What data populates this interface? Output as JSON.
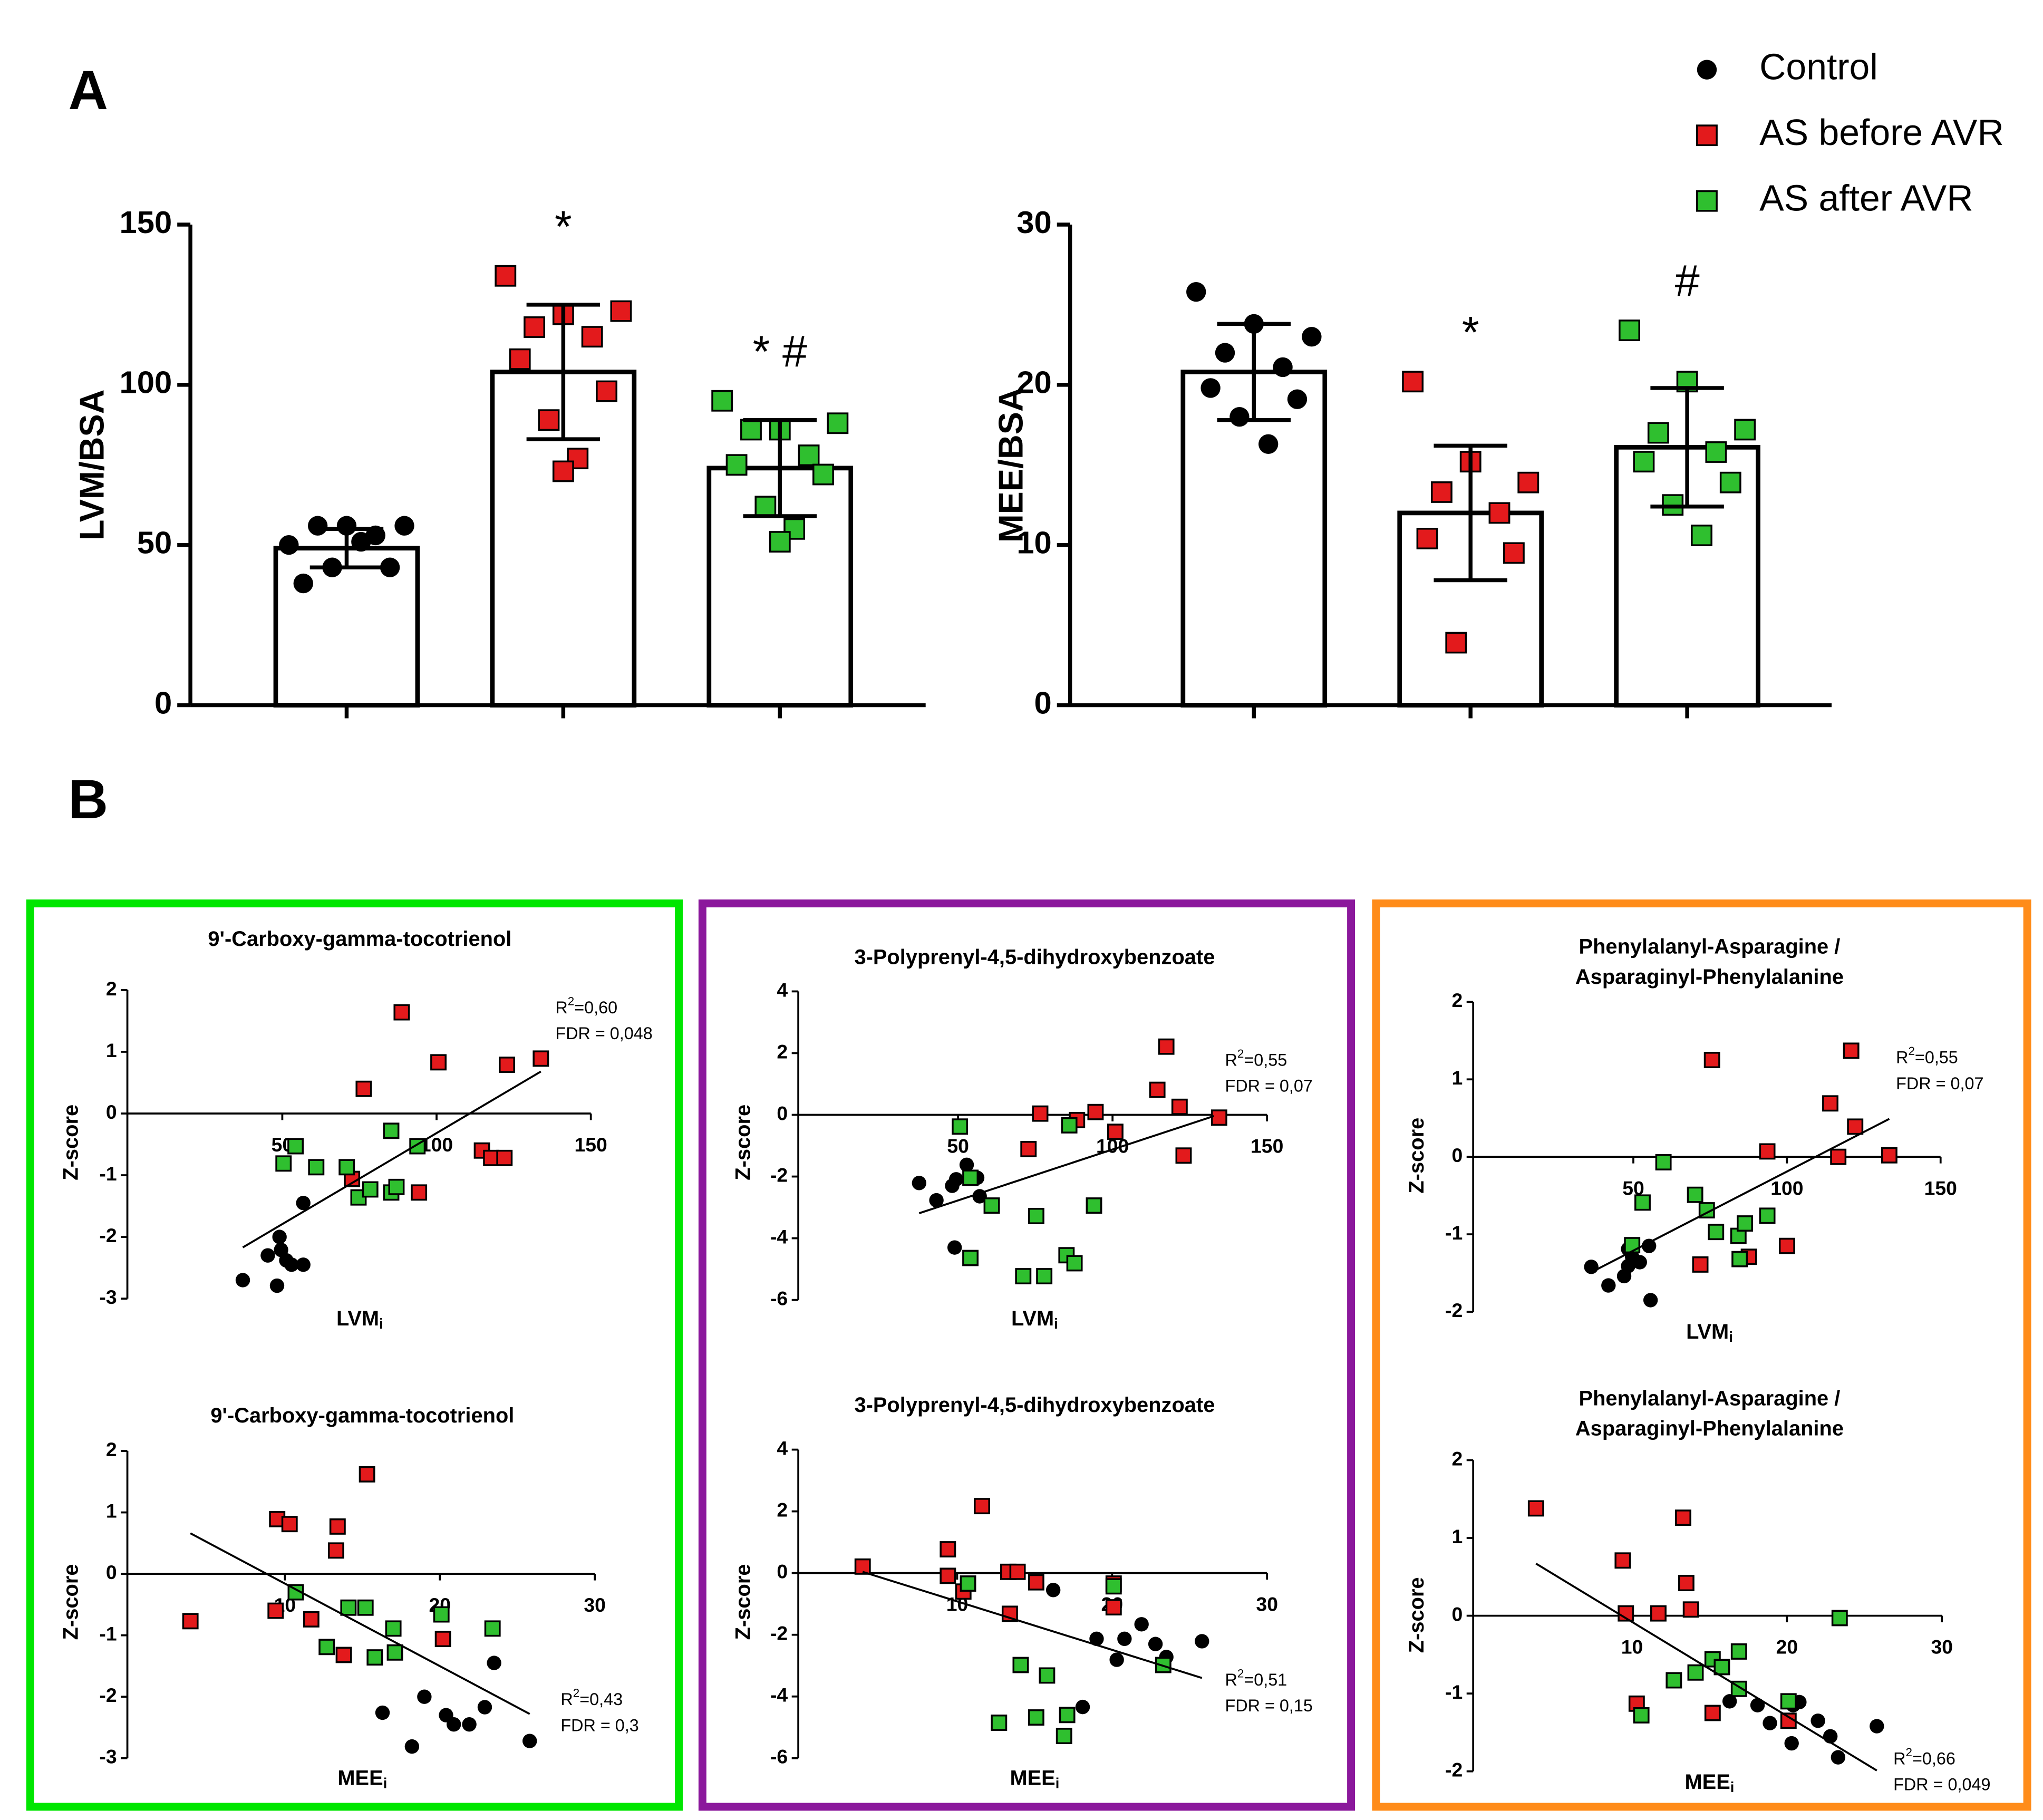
{
  "panel_labels": [
    "A",
    "B"
  ],
  "chart_data": [
    {
      "type": "bar",
      "ylabel": "LVM/BSA",
      "categories": [
        null,
        null,
        null
      ],
      "ylim": [
        0,
        150
      ],
      "yticks": [
        0,
        50,
        100,
        150
      ],
      "series": [
        {
          "name": "Control",
          "color": "#000000",
          "marker": "circle",
          "value": 49,
          "error": 6,
          "points": [
            50,
            56,
            56,
            56,
            53,
            38,
            43,
            43,
            51
          ]
        },
        {
          "name": "AS before AVR",
          "color": "#e31a1c",
          "marker": "square",
          "value": 104,
          "error": 21,
          "points": [
            134,
            122,
            123,
            118,
            115,
            108,
            98,
            89,
            77,
            73
          ]
        },
        {
          "name": "AS after AVR",
          "color": "#2fbf2f",
          "marker": "square",
          "value": 74,
          "error": 15,
          "points": [
            95,
            86,
            88,
            86,
            78,
            75,
            72,
            62,
            55,
            51
          ]
        }
      ],
      "annotations": [
        {
          "text": "*",
          "index": 1
        },
        {
          "text": "* #",
          "index": 2
        }
      ]
    },
    {
      "type": "bar",
      "ylabel": "MEE/BSA",
      "categories": [
        null,
        null,
        null
      ],
      "ylim": [
        0,
        30
      ],
      "yticks": [
        0,
        10,
        20,
        30
      ],
      "series": [
        {
          "color": "#000000",
          "marker": "circle",
          "value": 20.8,
          "error": 3,
          "points": [
            25.8,
            23.8,
            23,
            22,
            21.1,
            19.8,
            19.1,
            18,
            16.3
          ]
        },
        {
          "color": "#e31a1c",
          "marker": "square",
          "value": 12,
          "error": 4.2,
          "points": [
            20.2,
            15.2,
            13.9,
            13.3,
            12,
            10.4,
            9.5,
            3.9
          ]
        },
        {
          "color": "#2fbf2f",
          "marker": "square",
          "value": 16.1,
          "error": 3.7,
          "points": [
            23.4,
            20.2,
            17.2,
            17,
            15.8,
            15.2,
            13.9,
            12.5,
            10.6
          ]
        }
      ],
      "annotations": [
        {
          "text": "*",
          "index": 1
        },
        {
          "text": "#",
          "index": 2
        }
      ]
    },
    {
      "type": "scatter",
      "title": "9'-Carboxy-gamma-tocotrienol",
      "xlabel": "LVM",
      "xlabel_sub": "i",
      "ylabel": "Z-score",
      "xlim": [
        0,
        150
      ],
      "xticks": [
        50,
        100,
        150
      ],
      "ylim": [
        -3,
        2
      ],
      "yticks": [
        -3,
        -2,
        -1,
        0,
        1,
        2
      ],
      "r2": {
        "label": "R",
        "sup": "2",
        "value": "=0,60"
      },
      "fdr": "FDR = 0,048",
      "trendline": {
        "x": [
          37.2,
          133.8
        ],
        "y": [
          -2.17,
          0.68
        ]
      },
      "series": [
        {
          "color": "#000000",
          "marker": "circle",
          "x": [
            37.2,
            45.3,
            48.3,
            49.1,
            49.6,
            51.3,
            53,
            56.8,
            56.8
          ],
          "y": [
            -2.7,
            -2.3,
            -2.79,
            -2.0,
            -2.21,
            -2.38,
            -2.45,
            -2.45,
            -1.45
          ]
        },
        {
          "color": "#e31a1c",
          "marker": "square",
          "x": [
            88.7,
            76.4,
            100.6,
            122.8,
            133.8,
            114.7,
            117.7,
            122,
            94.3,
            72.6
          ],
          "y": [
            1.64,
            0.4,
            0.83,
            0.79,
            0.89,
            -0.6,
            -0.72,
            -0.72,
            -1.28,
            -1.06
          ]
        },
        {
          "color": "#2fbf2f",
          "marker": "square",
          "x": [
            50.4,
            54.3,
            61,
            70.9,
            74.7,
            78.5,
            85.3,
            85.3,
            87,
            93.8
          ],
          "y": [
            -0.81,
            -0.53,
            -0.87,
            -0.87,
            -1.36,
            -1.23,
            -0.28,
            -1.28,
            -1.19,
            -0.53
          ]
        }
      ]
    },
    {
      "type": "scatter",
      "title": "9'-Carboxy-gamma-tocotrienol",
      "xlabel": "MEE",
      "xlabel_sub": "i",
      "ylabel": "Z-score",
      "xlim": [
        0,
        30
      ],
      "xticks": [
        10,
        20,
        30
      ],
      "ylim": [
        -3,
        2
      ],
      "yticks": [
        -3,
        -2,
        -1,
        0,
        1,
        2
      ],
      "r2": {
        "label": "R",
        "sup": "2",
        "value": "=0,43"
      },
      "fdr": "FDR = 0,3",
      "trendline": {
        "x": [
          3.9,
          25.8
        ],
        "y": [
          0.66,
          -2.28
        ]
      },
      "series": [
        {
          "color": "#000000",
          "marker": "circle",
          "x": [
            16.3,
            18.2,
            19,
            20.4,
            20.9,
            21.9,
            22.9,
            23.5,
            25.8
          ],
          "y": [
            -2.26,
            -2.81,
            -2.0,
            -2.3,
            -2.45,
            -2.45,
            -2.17,
            -1.45,
            -2.72
          ]
        },
        {
          "color": "#e31a1c",
          "marker": "square",
          "x": [
            3.9,
            9.5,
            10.3,
            13.4,
            13.3,
            15.3,
            9.4,
            11.7,
            13.8,
            20.2
          ],
          "y": [
            -0.77,
            0.89,
            0.81,
            0.77,
            0.38,
            1.62,
            -0.6,
            -0.74,
            -1.32,
            -1.06
          ]
        },
        {
          "color": "#2fbf2f",
          "marker": "square",
          "x": [
            10.7,
            12.7,
            14.1,
            15.2,
            15.8,
            17,
            17.1,
            20.1,
            23.4
          ],
          "y": [
            -0.3,
            -1.19,
            -0.55,
            -0.55,
            -1.36,
            -0.89,
            -1.28,
            -0.66,
            -0.89
          ]
        }
      ]
    },
    {
      "type": "scatter",
      "title": "3-Polyprenyl-4,5-dihydroxybenzoate",
      "xlabel": "LVM",
      "xlabel_sub": "i",
      "ylabel": "Z-score",
      "xlim": [
        0,
        150
      ],
      "xticks": [
        50,
        100,
        150
      ],
      "ylim": [
        -6,
        4
      ],
      "yticks": [
        -6,
        -4,
        -2,
        0,
        2,
        4
      ],
      "r2": {
        "label": "R",
        "sup": "2",
        "value": "=0,55"
      },
      "fdr": "FDR = 0,07",
      "trendline": {
        "x": [
          37.4,
          132.8
        ],
        "y": [
          -3.19,
          -0.04
        ]
      },
      "series": [
        {
          "color": "#000000",
          "marker": "circle",
          "x": [
            37.4,
            43,
            48.1,
            49.4,
            52.8,
            56.2,
            57,
            48.9
          ],
          "y": [
            -2.21,
            -2.77,
            -2.3,
            -2.09,
            -1.62,
            -2.04,
            -2.64,
            -4.3
          ]
        },
        {
          "color": "#e31a1c",
          "marker": "square",
          "x": [
            117.4,
            114.5,
            121.7,
            134.5,
            123,
            100.9,
            94.5,
            88.5,
            76.6,
            72.8
          ],
          "y": [
            2.21,
            0.81,
            0.26,
            -0.09,
            -1.32,
            -0.55,
            0.09,
            -0.17,
            0.04,
            -1.11
          ]
        },
        {
          "color": "#2fbf2f",
          "marker": "square",
          "x": [
            50.6,
            54,
            60.9,
            75.3,
            71.1,
            77.9,
            85.1,
            87.7,
            86,
            94,
            54
          ],
          "y": [
            -0.38,
            -2.04,
            -2.94,
            -3.28,
            -5.23,
            -5.23,
            -4.55,
            -4.81,
            -0.34,
            -2.94,
            -4.64
          ]
        }
      ]
    },
    {
      "type": "scatter",
      "title": "3-Polyprenyl-4,5-dihydroxybenzoate",
      "xlabel": "MEE",
      "xlabel_sub": "i",
      "ylabel": "Z-score",
      "xlim": [
        0,
        30
      ],
      "xticks": [
        10,
        20,
        30
      ],
      "ylim": [
        -6,
        4
      ],
      "yticks": [
        -6,
        -4,
        -2,
        0,
        2,
        4
      ],
      "r2": {
        "label": "R",
        "sup": "2",
        "value": "=0,51"
      },
      "fdr": "FDR = 0,15",
      "trendline": {
        "x": [
          3.9,
          25.8
        ],
        "y": [
          0.04,
          -3.4
        ]
      },
      "series": [
        {
          "color": "#000000",
          "marker": "circle",
          "x": [
            16.2,
            19,
            20.3,
            20.8,
            21.9,
            22.8,
            23.5,
            25.8,
            18.1
          ],
          "y": [
            -0.55,
            -2.13,
            -2.81,
            -2.13,
            -1.66,
            -2.3,
            -2.72,
            -2.21,
            -4.34
          ]
        },
        {
          "color": "#e31a1c",
          "marker": "square",
          "x": [
            3.9,
            9.4,
            9.4,
            10.4,
            11.6,
            13.3,
            13.9,
            15.1,
            13.4,
            20.1,
            20.1
          ],
          "y": [
            0.21,
            0.77,
            -0.09,
            -0.6,
            2.17,
            0.04,
            0.04,
            -0.3,
            -1.32,
            -0.34,
            -1.11
          ]
        },
        {
          "color": "#2fbf2f",
          "marker": "square",
          "x": [
            10.7,
            14.1,
            15.8,
            12.7,
            15.1,
            17.1,
            16.9,
            20.1,
            23.3
          ],
          "y": [
            -0.34,
            -2.98,
            -3.32,
            -4.85,
            -4.68,
            -4.6,
            -5.28,
            -0.43,
            -2.98
          ]
        }
      ]
    },
    {
      "type": "scatter",
      "title": [
        "Phenylalanyl-Asparagine /",
        "Asparaginyl-Phenylalanine"
      ],
      "xlabel": "LVM",
      "xlabel_sub": "i",
      "ylabel": "Z-score",
      "xlim": [
        0,
        150
      ],
      "xticks": [
        50,
        100,
        150
      ],
      "ylim": [
        -2,
        2
      ],
      "yticks": [
        -2,
        -1,
        0,
        1,
        2
      ],
      "r2": {
        "label": "R",
        "sup": "2",
        "value": "=0,55"
      },
      "fdr": "FDR = 0,07",
      "trendline": {
        "x": [
          36.3,
          133.3
        ],
        "y": [
          -1.49,
          0.49
        ]
      },
      "series": [
        {
          "color": "#000000",
          "marker": "circle",
          "x": [
            36.3,
            41.9,
            47,
            48.3,
            49.6,
            52.1,
            55.1,
            55.6,
            48.3
          ],
          "y": [
            -1.42,
            -1.66,
            -1.54,
            -1.41,
            -1.29,
            -1.36,
            -1.15,
            -1.85,
            -1.19
          ]
        },
        {
          "color": "#e31a1c",
          "marker": "square",
          "x": [
            75.6,
            120.9,
            114.1,
            122.2,
            133.3,
            116.7,
            93.6,
            71.8,
            87.6,
            100
          ],
          "y": [
            1.25,
            1.37,
            0.69,
            0.39,
            0.02,
            0,
            0.07,
            -1.39,
            -1.29,
            -1.15
          ]
        },
        {
          "color": "#2fbf2f",
          "marker": "square",
          "x": [
            59.8,
            53,
            49.6,
            70.1,
            73.9,
            76.9,
            84.2,
            86.3,
            93.6,
            84.6
          ],
          "y": [
            -0.07,
            -0.59,
            -1.14,
            -0.49,
            -0.69,
            -0.97,
            -1.02,
            -0.86,
            -0.76,
            -1.32
          ]
        }
      ]
    },
    {
      "type": "scatter",
      "title": [
        "Phenylalanyl-Asparagine /",
        "Asparaginyl-Phenylalanine"
      ],
      "xlabel": "MEE",
      "xlabel_sub": "i",
      "ylabel": "Z-score",
      "xlim": [
        0,
        30
      ],
      "xticks": [
        10,
        20,
        30
      ],
      "ylim": [
        -2,
        2
      ],
      "yticks": [
        -2,
        -1,
        0,
        1,
        2
      ],
      "r2": {
        "label": "R",
        "sup": "2",
        "value": "=0,66"
      },
      "fdr": "FDR = 0,049",
      "trendline": {
        "x": [
          3.8,
          25.8
        ],
        "y": [
          0.67,
          -1.99
        ]
      },
      "series": [
        {
          "color": "#000000",
          "marker": "circle",
          "x": [
            16.3,
            18.1,
            18.9,
            20.4,
            20.8,
            20.3,
            22,
            22.8,
            23.3,
            25.8
          ],
          "y": [
            -1.1,
            -1.15,
            -1.38,
            -1.15,
            -1.11,
            -1.64,
            -1.35,
            -1.55,
            -1.82,
            -1.42
          ]
        },
        {
          "color": "#e31a1c",
          "marker": "square",
          "x": [
            3.8,
            9.4,
            9.6,
            10.3,
            11.7,
            13.3,
            13.5,
            13.8,
            15.2,
            20.1
          ],
          "y": [
            1.38,
            0.71,
            0.03,
            -1.13,
            0.03,
            1.26,
            0.42,
            0.08,
            -1.25,
            -1.35
          ]
        },
        {
          "color": "#2fbf2f",
          "marker": "square",
          "x": [
            10.6,
            12.7,
            14.1,
            15.2,
            15.8,
            16.9,
            16.9,
            20.1,
            23.4
          ],
          "y": [
            -1.28,
            -0.83,
            -0.73,
            -0.56,
            -0.66,
            -0.46,
            -0.94,
            -1.1,
            -0.03
          ]
        }
      ]
    }
  ]
}
